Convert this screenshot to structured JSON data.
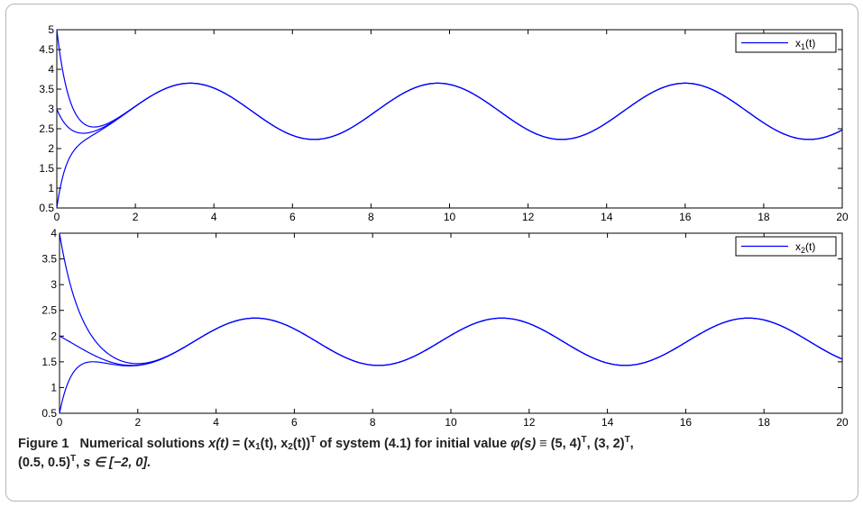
{
  "chart_data": [
    {
      "type": "line",
      "legend_label": "x",
      "legend_sub": "1",
      "legend_suffix": "(t)",
      "legend_position": "top-right",
      "xlim": [
        0,
        20
      ],
      "ylim": [
        0.5,
        5
      ],
      "xticks": [
        "0",
        "2",
        "4",
        "6",
        "8",
        "10",
        "12",
        "14",
        "16",
        "18",
        "20"
      ],
      "yticks": [
        "0.5",
        "1",
        "1.5",
        "2",
        "2.5",
        "3",
        "3.5",
        "4",
        "4.5",
        "5"
      ],
      "grid": false,
      "line_color": "#0000ff",
      "initial_values": [
        5,
        3,
        0.5
      ],
      "periodic": {
        "period": 6.3,
        "max": 3.65,
        "min": 2.23,
        "first_peak_x": 3.4
      },
      "settle_time": 1.3
    },
    {
      "type": "line",
      "legend_label": "x",
      "legend_sub": "2",
      "legend_suffix": "(t)",
      "legend_position": "top-right",
      "xlim": [
        0,
        20
      ],
      "ylim": [
        0.5,
        4
      ],
      "xticks": [
        "0",
        "2",
        "4",
        "6",
        "8",
        "10",
        "12",
        "14",
        "16",
        "18",
        "20"
      ],
      "yticks": [
        "0.5",
        "1",
        "1.5",
        "2",
        "2.5",
        "3",
        "3.5",
        "4"
      ],
      "grid": false,
      "line_color": "#0000ff",
      "initial_values": [
        4,
        2,
        0.5
      ],
      "periodic": {
        "period": 6.3,
        "max": 2.35,
        "min": 1.43,
        "first_peak_x": 5.0
      },
      "settle_time": 1.9
    }
  ],
  "caption": {
    "figure_label": "Figure 1",
    "part1": "Numerical solutions ",
    "x_def_a": "x(t)",
    "x_def_b": " = (x",
    "sub1": "1",
    "x_def_c": "(t), x",
    "sub2": "2",
    "x_def_d": "(t))",
    "sup_t": "T",
    "part2": " of system (4.1) for initial value ",
    "phi": "φ(s)",
    "part3": " ≡ (5, 4)",
    "part4": ", (3, 2)",
    "part5": ",",
    "part6": "(0.5, 0.5)",
    "part7": ", ",
    "s_range": "s ∈ [−2, 0]."
  }
}
